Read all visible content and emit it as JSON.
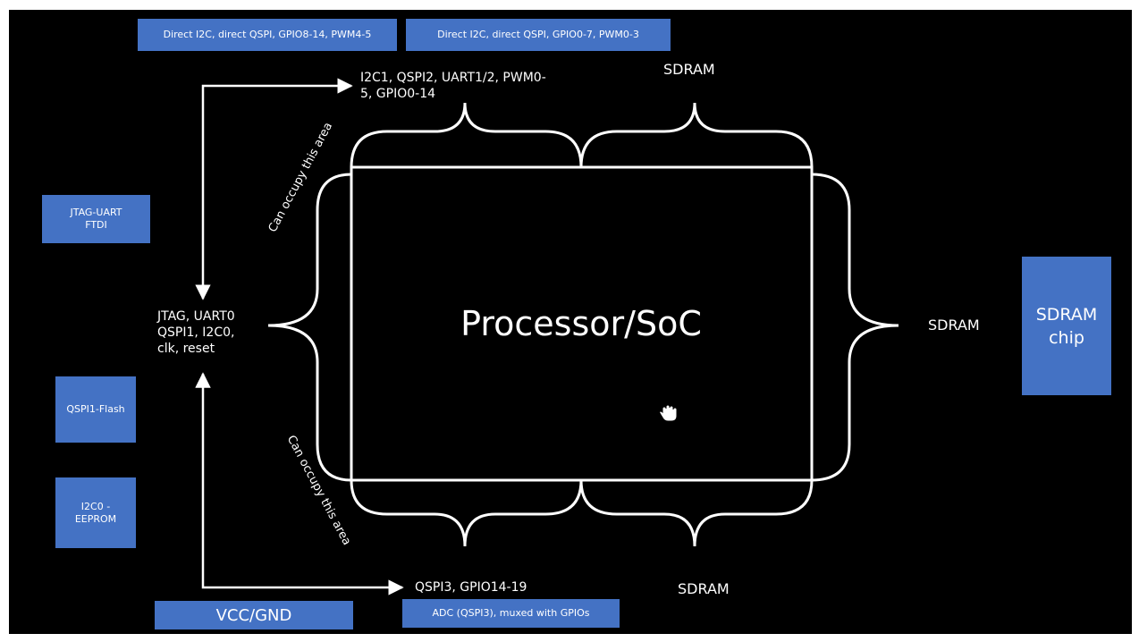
{
  "top_boxes": {
    "left": "Direct I2C, direct QSPI, GPIO8-14, PWM4-5",
    "right": "Direct I2C, direct QSPI, GPIO0-7, PWM0-3"
  },
  "left_boxes": {
    "jtag_uart": [
      "JTAG-UART",
      "FTDI"
    ],
    "qspi_flash": "QSPI1-Flash",
    "i2c_eeprom": [
      "I2C0 -",
      "EEPROM"
    ]
  },
  "bottom_boxes": {
    "vcc": "VCC/GND",
    "adc": "ADC (QSPI3), muxed with GPIOs"
  },
  "right_box": [
    "SDRAM",
    "chip"
  ],
  "labels": {
    "top_interfaces": [
      "I2C1, QSPI2, UART1/2, PWM0-",
      "5, GPIO0-14"
    ],
    "left_interfaces": [
      "JTAG, UART0",
      "QSPI1, I2C0,",
      "clk, reset"
    ],
    "bottom_interfaces": "QSPI3, GPIO14-19",
    "sdram_top": "SDRAM",
    "sdram_right": "SDRAM",
    "sdram_bottom": "SDRAM",
    "occupy_top": "Can occupy this area",
    "occupy_bottom": "Can occupy this area"
  },
  "main_title": "Processor/SoC",
  "colors": {
    "box": "#4472c4",
    "background": "#000000",
    "lines": "#ffffff"
  },
  "icons": [
    "hand-cursor-icon"
  ]
}
